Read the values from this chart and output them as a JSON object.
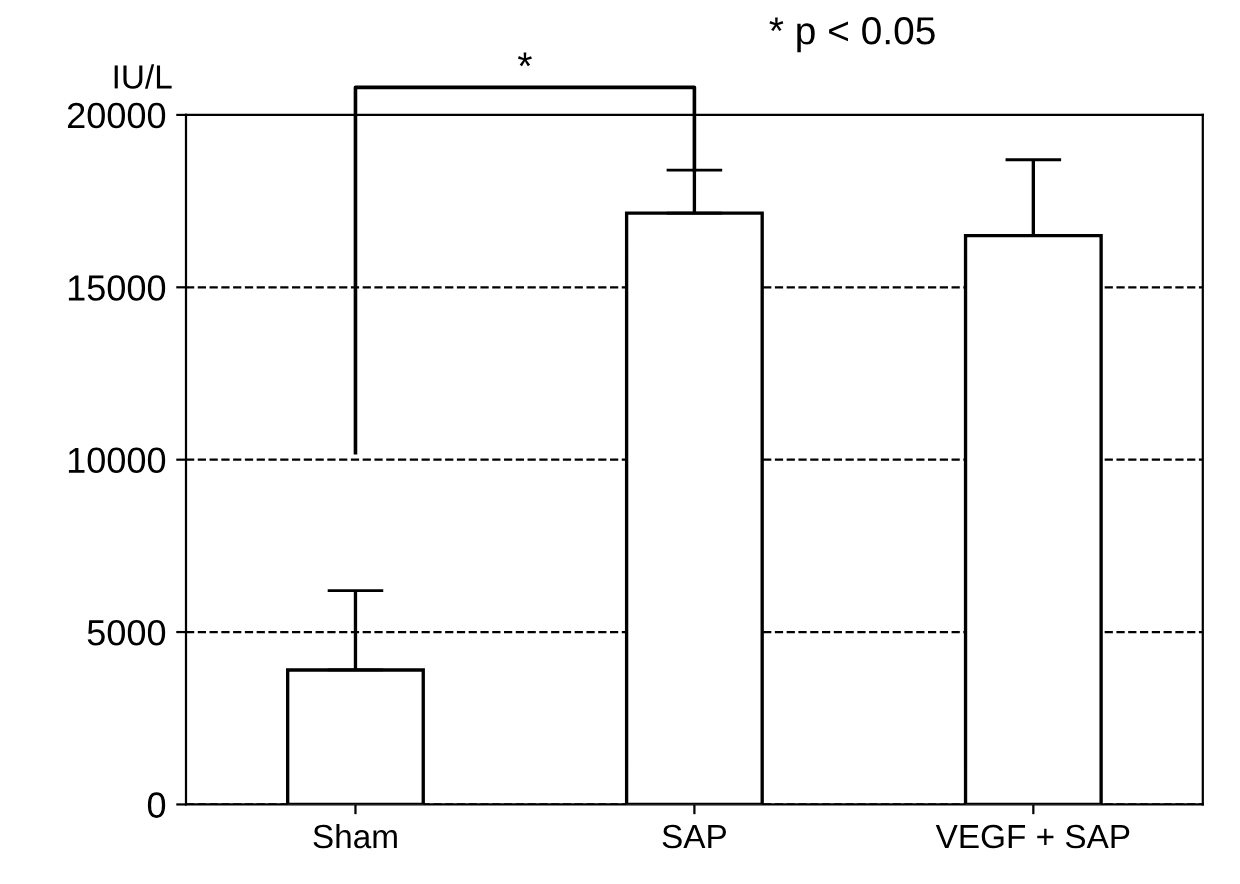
{
  "chart_data": {
    "type": "bar",
    "ylabel": "IU/L",
    "categories": [
      "Sham",
      "SAP",
      "VEGF + SAP"
    ],
    "values": [
      3900,
      17150,
      16500
    ],
    "errors": [
      [
        3900,
        6200
      ],
      [
        17150,
        18400
      ],
      [
        16500,
        18700
      ]
    ],
    "color": "#ffffff",
    "ylim": [
      0,
      20000
    ],
    "yticks": [
      0,
      5000,
      10000,
      15000,
      20000
    ],
    "grid": "y",
    "annotations": [
      "*",
      "* p < 0.05"
    ]
  }
}
